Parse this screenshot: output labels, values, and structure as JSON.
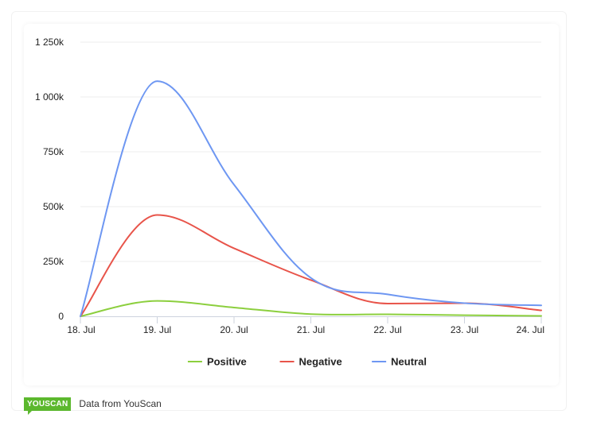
{
  "chart_data": {
    "type": "line",
    "title": "",
    "xlabel": "",
    "ylabel": "",
    "categories": [
      "18. Jul",
      "19. Jul",
      "20. Jul",
      "21. Jul",
      "22. Jul",
      "23. Jul",
      "24. Jul"
    ],
    "y_ticks": [
      "0",
      "250k",
      "500k",
      "750k",
      "1 000k",
      "1 250k"
    ],
    "ylim": [
      0,
      1250000
    ],
    "grid": "horizontal",
    "legend": "bottom-center",
    "series": [
      {
        "name": "Positive",
        "color": "#8ccf3e",
        "values": [
          0,
          70000,
          40000,
          10000,
          9000,
          5000,
          2000
        ]
      },
      {
        "name": "Negative",
        "color": "#e8544a",
        "values": [
          0,
          462000,
          310000,
          165000,
          58000,
          60000,
          27000
        ]
      },
      {
        "name": "Neutral",
        "color": "#6e97f2",
        "values": [
          0,
          1072000,
          600000,
          175000,
          100000,
          60000,
          50000
        ]
      }
    ]
  },
  "footer": {
    "brand": "YOUSCAN",
    "text": "Data from YouScan"
  }
}
